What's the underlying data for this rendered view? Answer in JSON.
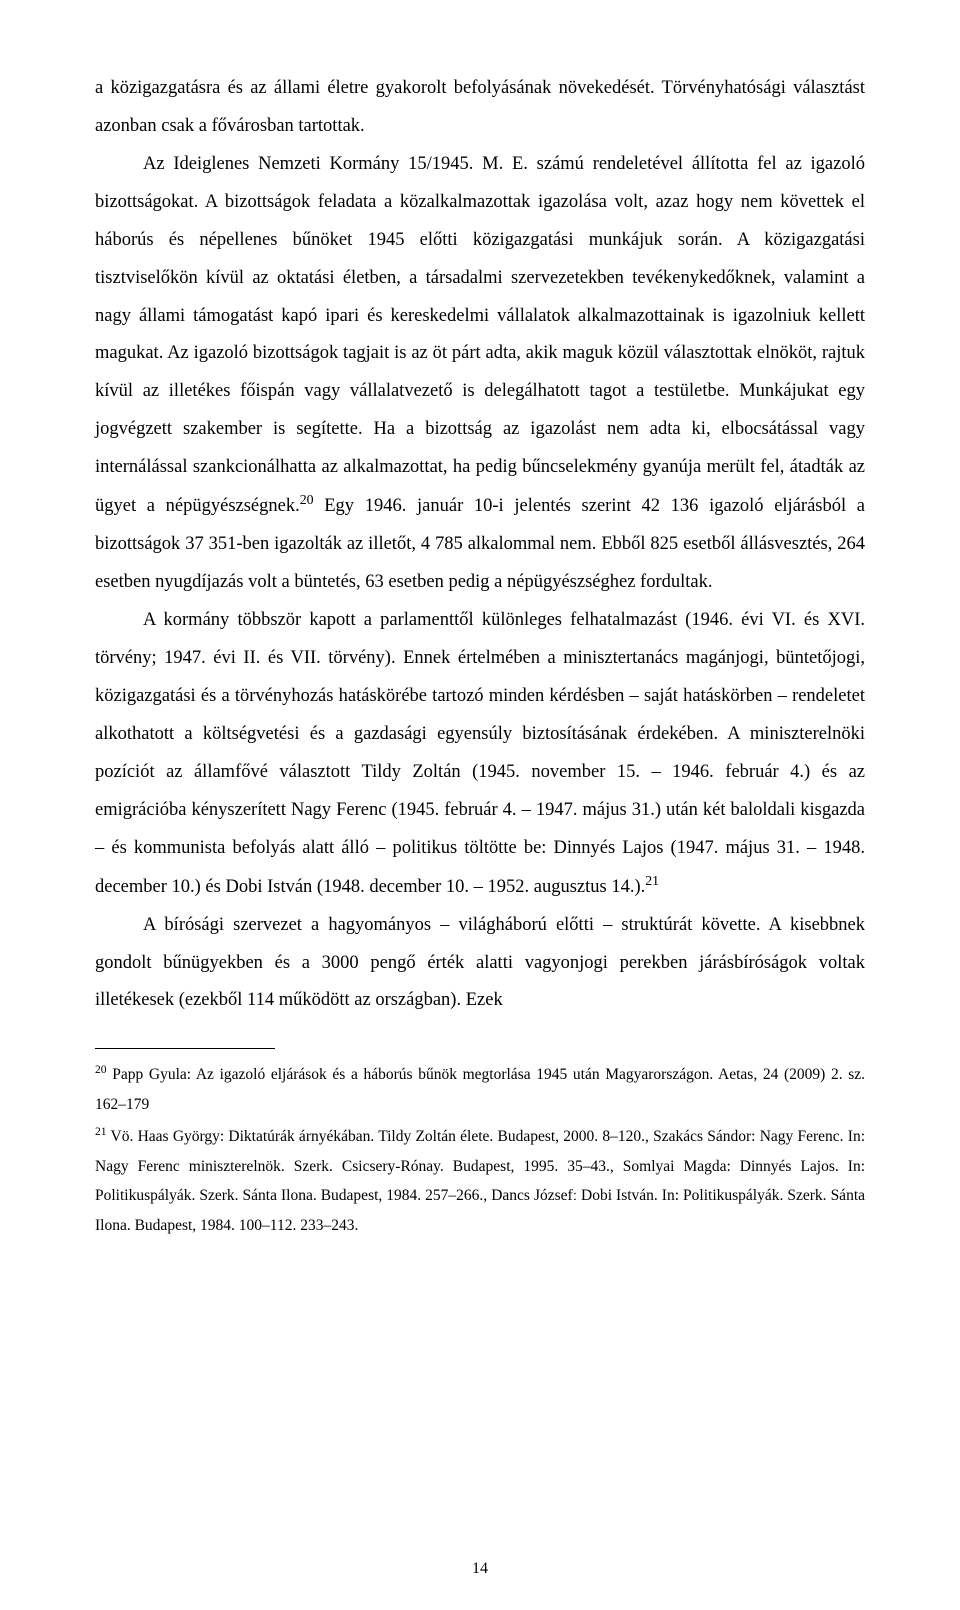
{
  "body": {
    "para1": "a közigazgatásra és az állami életre gyakorolt befolyásának növekedését. Törvényhatósági választást azonban csak a fővárosban tartottak.",
    "para2_start": "Az Ideiglenes Nemzeti Kormány 15/1945. M. E. számú rendeletével állította fel az igazoló bizottságokat. A bizottságok feladata a közalkalmazottak igazolása volt, azaz hogy nem követtek el háborús és népellenes bűnöket 1945 előtti közigazgatási munkájuk során. A közigazgatási tisztviselőkön kívül az oktatási életben, a társadalmi szervezetekben tevékenykedőknek, valamint a nagy állami támogatást kapó ipari és kereskedelmi vállalatok alkalmazottainak is igazolniuk kellett magukat. Az igazoló bizottságok tagjait is az öt párt adta, akik maguk közül választottak elnököt, rajtuk kívül az illetékes főispán vagy vállalatvezető is delegálhatott tagot a testületbe. Munkájukat egy jogvégzett szakember is segítette. Ha a bizottság az igazolást nem adta ki, elbocsátással vagy internálással szankcionálhatta az alkalmazottat, ha pedig bűncselekmény gyanúja merült fel, átadták az ügyet a népügyészségnek.",
    "note20_marker": "20",
    "para2_end": " Egy 1946. január 10-i jelentés szerint 42 136 igazoló eljárásból a bizottságok 37 351-ben igazolták az illetőt, 4 785 alkalommal nem. Ebből 825 esetből állásvesztés, 264 esetben nyugdíjazás volt a büntetés, 63 esetben pedig a népügyészséghez fordultak.",
    "para3_start": "A kormány többször kapott a parlamenttől különleges felhatalmazást (1946. évi VI. és XVI. törvény; 1947. évi II. és VII. törvény). Ennek értelmében a minisztertanács magánjogi, büntetőjogi, közigazgatási és a törvényhozás hatáskörébe tartozó minden kérdésben – saját hatáskörben – rendeletet alkothatott a költségvetési és a gazdasági egyensúly biztosításának érdekében. A miniszterelnöki pozíciót az államfővé választott Tildy Zoltán (1945. november 15. – 1946. február 4.) és az emigrációba kényszerített Nagy Ferenc (1945. február 4. – 1947. május 31.) után két baloldali kisgazda – és kommunista befolyás alatt álló – politikus töltötte be: Dinnyés Lajos (1947. május 31. – 1948. december 10.) és Dobi István (1948. december 10. – 1952. augusztus 14.).",
    "note21_marker": "21",
    "para4": "A bírósági szervezet a hagyományos – világháború előtti – struktúrát követte. A kisebbnek gondolt bűnügyekben és a 3000 pengő érték alatti vagyonjogi perekben járásbíróságok voltak illetékesek (ezekből 114 működött az országban). Ezek"
  },
  "footnotes": {
    "n20": " Papp Gyula: Az igazoló eljárások és a háborús bűnök megtorlása 1945 után Magyarországon. Aetas, 24 (2009) 2. sz. 162–179",
    "n21": " Vö. Haas György: Diktatúrák árnyékában. Tildy Zoltán élete. Budapest, 2000. 8–120., Szakács Sándor: Nagy Ferenc. In: Nagy Ferenc miniszterelnök. Szerk. Csicsery-Rónay. Budapest, 1995. 35–43., Somlyai Magda: Dinnyés Lajos. In: Politikuspályák. Szerk. Sánta Ilona. Budapest, 1984. 257–266., Dancs Józsefː Dobi István. In: Politikuspályák. Szerk. Sánta Ilona. Budapest, 1984. 100–112. 233–243."
  },
  "page_number": "14"
}
